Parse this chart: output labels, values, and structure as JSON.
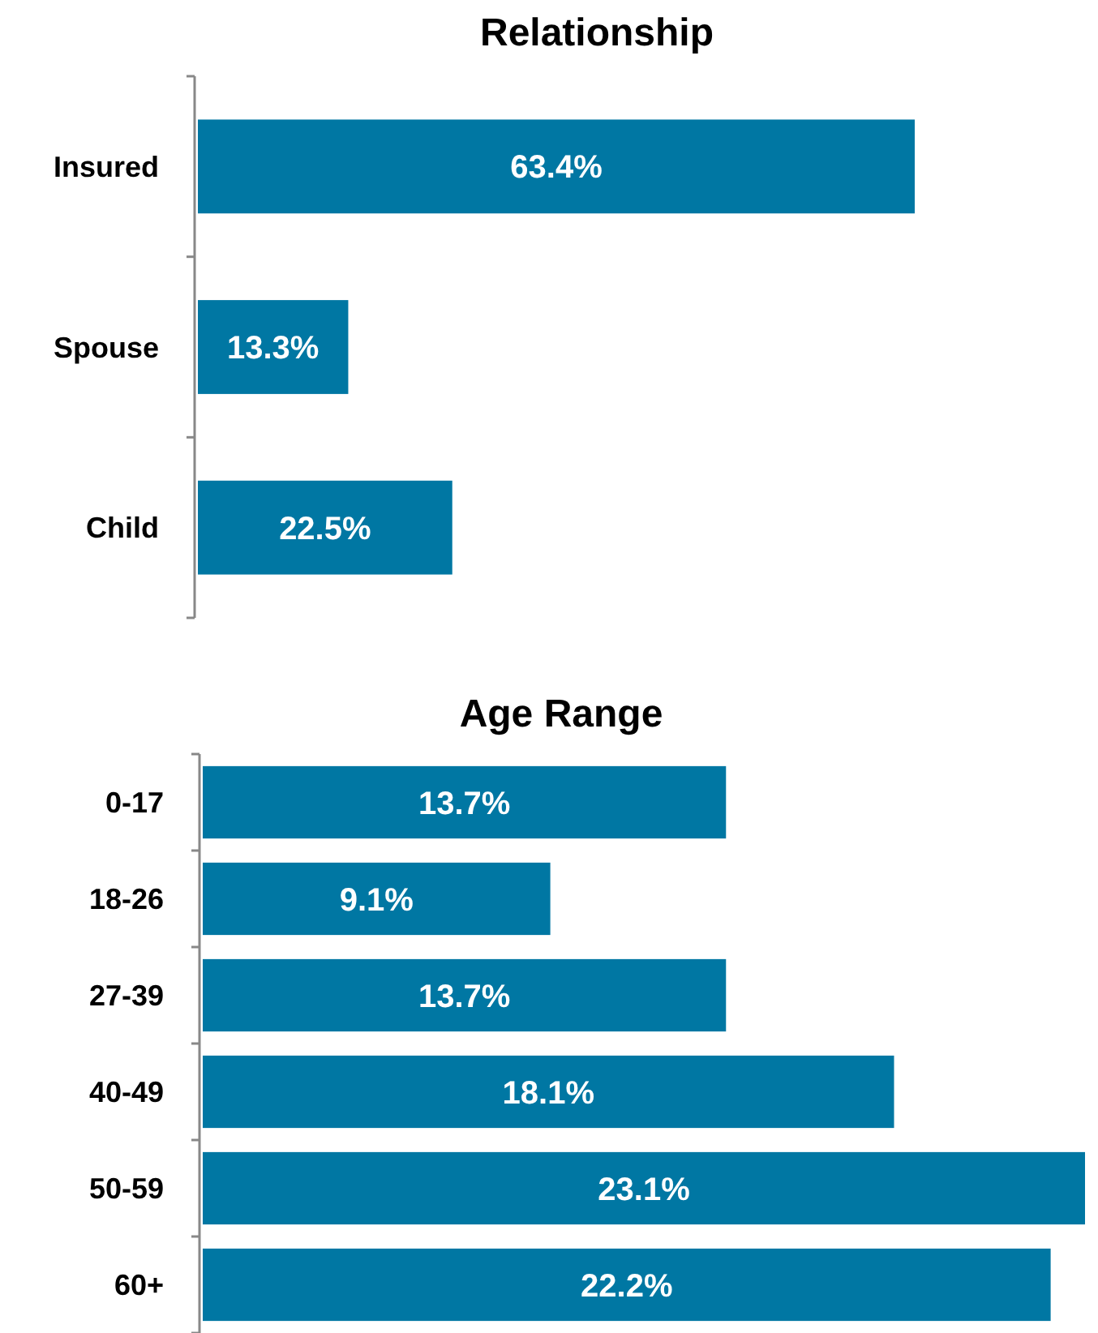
{
  "chart_data": [
    {
      "type": "bar",
      "orientation": "horizontal",
      "title": "Relationship",
      "categories": [
        "Insured",
        "Spouse",
        "Child"
      ],
      "values": [
        63.4,
        13.3,
        22.5
      ],
      "color": "#0077a3",
      "value_labels": [
        "63.4%",
        "13.3%",
        "22.5%"
      ]
    },
    {
      "type": "bar",
      "orientation": "horizontal",
      "title": "Age Range",
      "categories": [
        "0-17",
        "18-26",
        "27-39",
        "40-49",
        "50-59",
        "60+"
      ],
      "values": [
        13.7,
        9.1,
        13.7,
        18.1,
        23.1,
        22.2
      ],
      "color": "#0077a3",
      "value_labels": [
        "13.7%",
        "9.1%",
        "13.7%",
        "18.1%",
        "23.1%",
        "22.2%"
      ]
    }
  ]
}
